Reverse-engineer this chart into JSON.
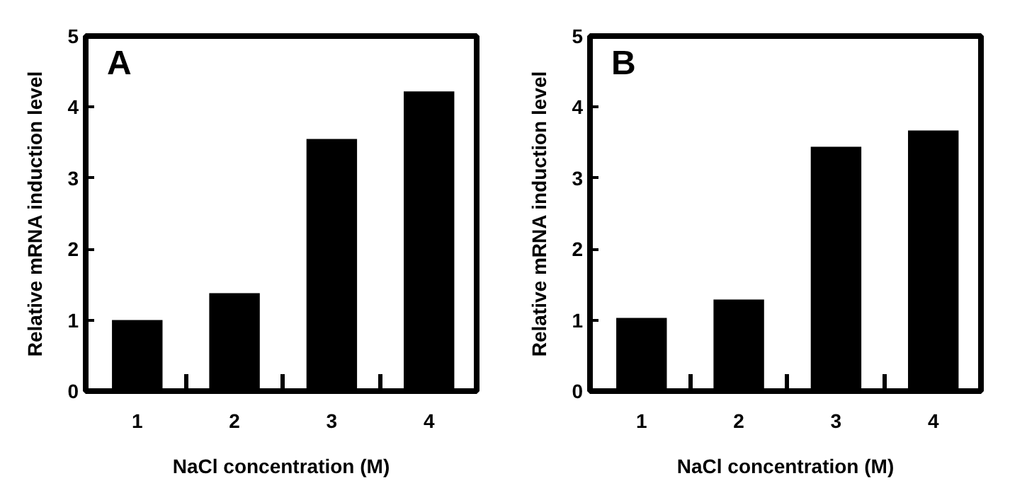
{
  "chart_data": [
    {
      "type": "bar",
      "categories": [
        "1",
        "2",
        "3",
        "4"
      ],
      "values": [
        1.0,
        1.38,
        3.55,
        4.22
      ],
      "color": "#000000",
      "ylim": [
        0,
        5
      ],
      "yticks": [
        0,
        1,
        2,
        3,
        4,
        5
      ],
      "xlabel": "NaCl concentration (M)",
      "ylabel": "Relative mRNA induction level",
      "annotations": [
        "A"
      ],
      "grid": false
    },
    {
      "type": "bar",
      "categories": [
        "1",
        "2",
        "3",
        "4"
      ],
      "values": [
        1.03,
        1.29,
        3.44,
        3.67
      ],
      "color": "#000000",
      "ylim": [
        0,
        5
      ],
      "yticks": [
        0,
        1,
        2,
        3,
        4,
        5
      ],
      "xlabel": "NaCl concentration (M)",
      "ylabel": "Relative mRNA induction level",
      "annotations": [
        "B"
      ],
      "grid": false
    }
  ]
}
